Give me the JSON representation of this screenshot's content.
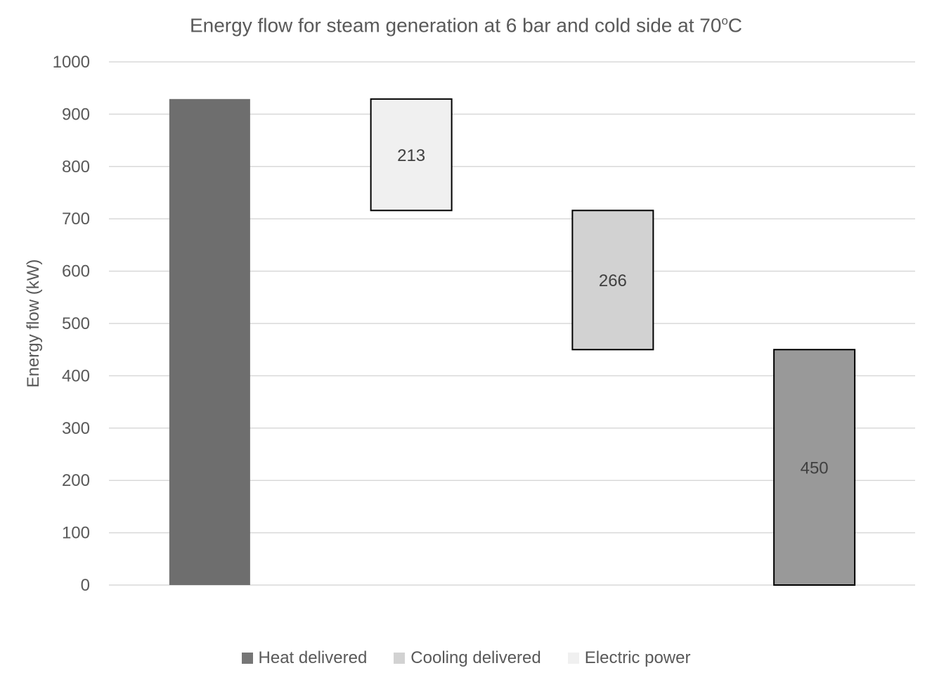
{
  "chart_data": {
    "type": "bar",
    "subtype": "waterfall",
    "title": "Energy flow for steam generation at 6 bar and cold side at 70",
    "title_degree_sup": "o",
    "title_suffix": "C",
    "ylabel": "Energy flow (kW)",
    "xlabel": "",
    "ylim": [
      0,
      1000
    ],
    "yticks": [
      0,
      100,
      200,
      300,
      400,
      500,
      600,
      700,
      800,
      900,
      1000
    ],
    "grid": true,
    "legend_position": "bottom",
    "bars": [
      {
        "series": "total",
        "base": 0,
        "top": 929,
        "label": "",
        "color": "#6e6e6e",
        "outline": false
      },
      {
        "series": "Electric power",
        "base": 716,
        "top": 929,
        "label": "213",
        "color": "#f0f0f0",
        "outline": true
      },
      {
        "series": "Cooling delivered",
        "base": 450,
        "top": 716,
        "label": "266",
        "color": "#d2d2d2",
        "outline": true
      },
      {
        "series": "Heat delivered",
        "base": 0,
        "top": 450,
        "label": "450",
        "color": "#999999",
        "outline": true
      }
    ],
    "legend": [
      {
        "name": "Heat delivered",
        "color": "#767676"
      },
      {
        "name": "Cooling delivered",
        "color": "#d2d2d2"
      },
      {
        "name": "Electric power",
        "color": "#f0f0f0"
      }
    ]
  }
}
